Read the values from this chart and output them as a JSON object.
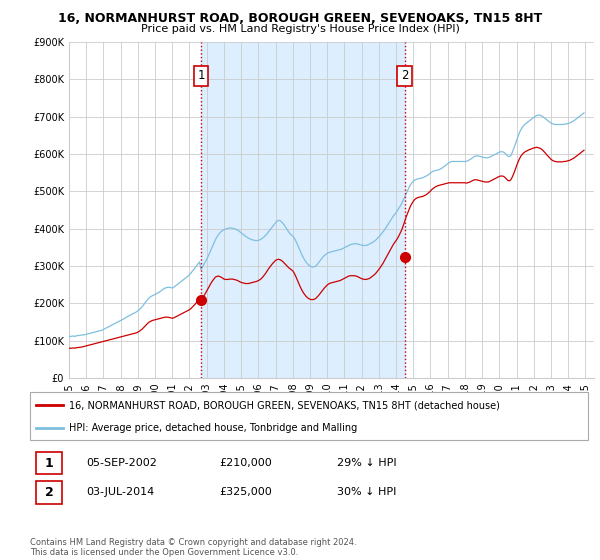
{
  "title": "16, NORMANHURST ROAD, BOROUGH GREEN, SEVENOAKS, TN15 8HT",
  "subtitle": "Price paid vs. HM Land Registry's House Price Index (HPI)",
  "ylim": [
    0,
    900000
  ],
  "yticks": [
    0,
    100000,
    200000,
    300000,
    400000,
    500000,
    600000,
    700000,
    800000,
    900000
  ],
  "xlim_start": 1995.0,
  "xlim_end": 2025.5,
  "sale1_date": 2002.67,
  "sale1_price": 210000,
  "sale1_label": "1",
  "sale2_date": 2014.5,
  "sale2_price": 325000,
  "sale2_label": "2",
  "hpi_color": "#7fbfdf",
  "sale_color": "#cc0000",
  "vline_color": "#cc0000",
  "shade_color": "#ddeeff",
  "legend_sale_label": "16, NORMANHURST ROAD, BOROUGH GREEN, SEVENOAKS, TN15 8HT (detached house)",
  "legend_hpi_label": "HPI: Average price, detached house, Tonbridge and Malling",
  "table_rows": [
    {
      "num": "1",
      "date": "05-SEP-2002",
      "price": "£210,000",
      "change": "29% ↓ HPI"
    },
    {
      "num": "2",
      "date": "03-JUL-2014",
      "price": "£325,000",
      "change": "30% ↓ HPI"
    }
  ],
  "footnote": "Contains HM Land Registry data © Crown copyright and database right 2024.\nThis data is licensed under the Open Government Licence v3.0.",
  "background_color": "#ffffff",
  "grid_color": "#cccccc",
  "hpi_data_x": [
    1995.0,
    1995.083,
    1995.167,
    1995.25,
    1995.333,
    1995.417,
    1995.5,
    1995.583,
    1995.667,
    1995.75,
    1995.833,
    1995.917,
    1996.0,
    1996.083,
    1996.167,
    1996.25,
    1996.333,
    1996.417,
    1996.5,
    1996.583,
    1996.667,
    1996.75,
    1996.833,
    1996.917,
    1997.0,
    1997.083,
    1997.167,
    1997.25,
    1997.333,
    1997.417,
    1997.5,
    1997.583,
    1997.667,
    1997.75,
    1997.833,
    1997.917,
    1998.0,
    1998.083,
    1998.167,
    1998.25,
    1998.333,
    1998.417,
    1998.5,
    1998.583,
    1998.667,
    1998.75,
    1998.833,
    1998.917,
    1999.0,
    1999.083,
    1999.167,
    1999.25,
    1999.333,
    1999.417,
    1999.5,
    1999.583,
    1999.667,
    1999.75,
    1999.833,
    1999.917,
    2000.0,
    2000.083,
    2000.167,
    2000.25,
    2000.333,
    2000.417,
    2000.5,
    2000.583,
    2000.667,
    2000.75,
    2000.833,
    2000.917,
    2001.0,
    2001.083,
    2001.167,
    2001.25,
    2001.333,
    2001.417,
    2001.5,
    2001.583,
    2001.667,
    2001.75,
    2001.833,
    2001.917,
    2002.0,
    2002.083,
    2002.167,
    2002.25,
    2002.333,
    2002.417,
    2002.5,
    2002.583,
    2002.667,
    2002.75,
    2002.833,
    2002.917,
    2003.0,
    2003.083,
    2003.167,
    2003.25,
    2003.333,
    2003.417,
    2003.5,
    2003.583,
    2003.667,
    2003.75,
    2003.833,
    2003.917,
    2004.0,
    2004.083,
    2004.167,
    2004.25,
    2004.333,
    2004.417,
    2004.5,
    2004.583,
    2004.667,
    2004.75,
    2004.833,
    2004.917,
    2005.0,
    2005.083,
    2005.167,
    2005.25,
    2005.333,
    2005.417,
    2005.5,
    2005.583,
    2005.667,
    2005.75,
    2005.833,
    2005.917,
    2006.0,
    2006.083,
    2006.167,
    2006.25,
    2006.333,
    2006.417,
    2006.5,
    2006.583,
    2006.667,
    2006.75,
    2006.833,
    2006.917,
    2007.0,
    2007.083,
    2007.167,
    2007.25,
    2007.333,
    2007.417,
    2007.5,
    2007.583,
    2007.667,
    2007.75,
    2007.833,
    2007.917,
    2008.0,
    2008.083,
    2008.167,
    2008.25,
    2008.333,
    2008.417,
    2008.5,
    2008.583,
    2008.667,
    2008.75,
    2008.833,
    2008.917,
    2009.0,
    2009.083,
    2009.167,
    2009.25,
    2009.333,
    2009.417,
    2009.5,
    2009.583,
    2009.667,
    2009.75,
    2009.833,
    2009.917,
    2010.0,
    2010.083,
    2010.167,
    2010.25,
    2010.333,
    2010.417,
    2010.5,
    2010.583,
    2010.667,
    2010.75,
    2010.833,
    2010.917,
    2011.0,
    2011.083,
    2011.167,
    2011.25,
    2011.333,
    2011.417,
    2011.5,
    2011.583,
    2011.667,
    2011.75,
    2011.833,
    2011.917,
    2012.0,
    2012.083,
    2012.167,
    2012.25,
    2012.333,
    2012.417,
    2012.5,
    2012.583,
    2012.667,
    2012.75,
    2012.833,
    2012.917,
    2013.0,
    2013.083,
    2013.167,
    2013.25,
    2013.333,
    2013.417,
    2013.5,
    2013.583,
    2013.667,
    2013.75,
    2013.833,
    2013.917,
    2014.0,
    2014.083,
    2014.167,
    2014.25,
    2014.333,
    2014.417,
    2014.5,
    2014.583,
    2014.667,
    2014.75,
    2014.833,
    2014.917,
    2015.0,
    2015.083,
    2015.167,
    2015.25,
    2015.333,
    2015.417,
    2015.5,
    2015.583,
    2015.667,
    2015.75,
    2015.833,
    2015.917,
    2016.0,
    2016.083,
    2016.167,
    2016.25,
    2016.333,
    2016.417,
    2016.5,
    2016.583,
    2016.667,
    2016.75,
    2016.833,
    2016.917,
    2017.0,
    2017.083,
    2017.167,
    2017.25,
    2017.333,
    2017.417,
    2017.5,
    2017.583,
    2017.667,
    2017.75,
    2017.833,
    2017.917,
    2018.0,
    2018.083,
    2018.167,
    2018.25,
    2018.333,
    2018.417,
    2018.5,
    2018.583,
    2018.667,
    2018.75,
    2018.833,
    2018.917,
    2019.0,
    2019.083,
    2019.167,
    2019.25,
    2019.333,
    2019.417,
    2019.5,
    2019.583,
    2019.667,
    2019.75,
    2019.833,
    2019.917,
    2020.0,
    2020.083,
    2020.167,
    2020.25,
    2020.333,
    2020.417,
    2020.5,
    2020.583,
    2020.667,
    2020.75,
    2020.833,
    2020.917,
    2021.0,
    2021.083,
    2021.167,
    2021.25,
    2021.333,
    2021.417,
    2021.5,
    2021.583,
    2021.667,
    2021.75,
    2021.833,
    2021.917,
    2022.0,
    2022.083,
    2022.167,
    2022.25,
    2022.333,
    2022.417,
    2022.5,
    2022.583,
    2022.667,
    2022.75,
    2022.833,
    2022.917,
    2023.0,
    2023.083,
    2023.167,
    2023.25,
    2023.333,
    2023.417,
    2023.5,
    2023.583,
    2023.667,
    2023.75,
    2023.833,
    2023.917,
    2024.0,
    2024.083,
    2024.167,
    2024.25,
    2024.333,
    2024.417,
    2024.5,
    2024.583,
    2024.667,
    2024.75,
    2024.833,
    2024.917
  ],
  "hpi_data_y": [
    112000,
    111000,
    112000,
    112500,
    111000,
    113000,
    113500,
    114000,
    114500,
    115000,
    115500,
    116000,
    117000,
    118000,
    119000,
    120000,
    121000,
    122000,
    123000,
    124000,
    125000,
    126000,
    127000,
    128000,
    130000,
    132000,
    134000,
    136000,
    138000,
    140000,
    142000,
    144000,
    146000,
    148000,
    150000,
    152000,
    154000,
    156000,
    158000,
    160000,
    163000,
    165000,
    167000,
    169000,
    171000,
    173000,
    175000,
    177000,
    180000,
    183000,
    187000,
    191000,
    196000,
    201000,
    206000,
    211000,
    215000,
    218000,
    220000,
    222000,
    224000,
    226000,
    228000,
    230000,
    233000,
    236000,
    239000,
    241000,
    242000,
    243000,
    243000,
    242000,
    241000,
    243000,
    246000,
    249000,
    252000,
    255000,
    258000,
    261000,
    264000,
    267000,
    270000,
    273000,
    277000,
    281000,
    286000,
    291000,
    296000,
    301000,
    306000,
    311000,
    290000,
    297000,
    304000,
    311000,
    318000,
    326000,
    335000,
    344000,
    353000,
    362000,
    370000,
    377000,
    383000,
    388000,
    392000,
    395000,
    397000,
    399000,
    400000,
    401000,
    402000,
    402000,
    401000,
    400000,
    399000,
    397000,
    395000,
    392000,
    389000,
    386000,
    383000,
    380000,
    377000,
    375000,
    373000,
    371000,
    370000,
    369000,
    368000,
    368000,
    369000,
    370000,
    372000,
    375000,
    378000,
    382000,
    386000,
    391000,
    396000,
    401000,
    406000,
    411000,
    416000,
    420000,
    422000,
    422000,
    419000,
    415000,
    410000,
    404000,
    398000,
    392000,
    387000,
    383000,
    380000,
    375000,
    368000,
    360000,
    351000,
    342000,
    333000,
    325000,
    318000,
    312000,
    307000,
    303000,
    300000,
    298000,
    297000,
    298000,
    300000,
    304000,
    309000,
    314000,
    319000,
    324000,
    328000,
    331000,
    334000,
    336000,
    337000,
    338000,
    339000,
    340000,
    341000,
    342000,
    343000,
    344000,
    345000,
    347000,
    349000,
    351000,
    353000,
    355000,
    357000,
    358000,
    359000,
    360000,
    360000,
    359000,
    358000,
    357000,
    356000,
    355000,
    355000,
    355000,
    356000,
    358000,
    360000,
    362000,
    364000,
    367000,
    370000,
    374000,
    378000,
    382000,
    387000,
    392000,
    397000,
    403000,
    409000,
    415000,
    421000,
    427000,
    433000,
    438000,
    443000,
    449000,
    455000,
    461000,
    468000,
    476000,
    484000,
    493000,
    502000,
    510000,
    517000,
    523000,
    527000,
    530000,
    532000,
    533000,
    534000,
    535000,
    536000,
    537000,
    539000,
    541000,
    543000,
    546000,
    549000,
    552000,
    554000,
    555000,
    556000,
    557000,
    558000,
    560000,
    562000,
    565000,
    568000,
    571000,
    574000,
    577000,
    579000,
    580000,
    580000,
    580000,
    580000,
    580000,
    580000,
    580000,
    580000,
    580000,
    580000,
    580000,
    582000,
    584000,
    586000,
    589000,
    592000,
    594000,
    595000,
    595000,
    594000,
    593000,
    592000,
    591000,
    590000,
    590000,
    590000,
    591000,
    593000,
    595000,
    597000,
    599000,
    601000,
    603000,
    605000,
    606000,
    606000,
    605000,
    602000,
    598000,
    594000,
    593000,
    596000,
    604000,
    614000,
    625000,
    636000,
    647000,
    657000,
    665000,
    671000,
    676000,
    680000,
    683000,
    686000,
    689000,
    692000,
    695000,
    698000,
    701000,
    703000,
    704000,
    704000,
    703000,
    701000,
    698000,
    695000,
    692000,
    689000,
    686000,
    683000,
    681000,
    680000,
    679000,
    679000,
    679000,
    679000,
    679000,
    679000,
    680000,
    680000,
    681000,
    682000,
    683000,
    685000,
    687000,
    689000,
    692000,
    695000,
    698000,
    701000,
    704000,
    707000,
    710000
  ],
  "sale_data_x": [
    1995.0,
    1995.083,
    1995.167,
    1995.25,
    1995.333,
    1995.417,
    1995.5,
    1995.583,
    1995.667,
    1995.75,
    1995.833,
    1995.917,
    1996.0,
    1996.083,
    1996.167,
    1996.25,
    1996.333,
    1996.417,
    1996.5,
    1996.583,
    1996.667,
    1996.75,
    1996.833,
    1996.917,
    1997.0,
    1997.083,
    1997.167,
    1997.25,
    1997.333,
    1997.417,
    1997.5,
    1997.583,
    1997.667,
    1997.75,
    1997.833,
    1997.917,
    1998.0,
    1998.083,
    1998.167,
    1998.25,
    1998.333,
    1998.417,
    1998.5,
    1998.583,
    1998.667,
    1998.75,
    1998.833,
    1998.917,
    1999.0,
    1999.083,
    1999.167,
    1999.25,
    1999.333,
    1999.417,
    1999.5,
    1999.583,
    1999.667,
    1999.75,
    1999.833,
    1999.917,
    2000.0,
    2000.083,
    2000.167,
    2000.25,
    2000.333,
    2000.417,
    2000.5,
    2000.583,
    2000.667,
    2000.75,
    2000.833,
    2000.917,
    2001.0,
    2001.083,
    2001.167,
    2001.25,
    2001.333,
    2001.417,
    2001.5,
    2001.583,
    2001.667,
    2001.75,
    2001.833,
    2001.917,
    2002.0,
    2002.083,
    2002.167,
    2002.25,
    2002.333,
    2002.417,
    2002.5,
    2002.583,
    2002.667,
    2002.75,
    2002.833,
    2002.917,
    2003.0,
    2003.083,
    2003.167,
    2003.25,
    2003.333,
    2003.417,
    2003.5,
    2003.583,
    2003.667,
    2003.75,
    2003.833,
    2003.917,
    2004.0,
    2004.083,
    2004.167,
    2004.25,
    2004.333,
    2004.417,
    2004.5,
    2004.583,
    2004.667,
    2004.75,
    2004.833,
    2004.917,
    2005.0,
    2005.083,
    2005.167,
    2005.25,
    2005.333,
    2005.417,
    2005.5,
    2005.583,
    2005.667,
    2005.75,
    2005.833,
    2005.917,
    2006.0,
    2006.083,
    2006.167,
    2006.25,
    2006.333,
    2006.417,
    2006.5,
    2006.583,
    2006.667,
    2006.75,
    2006.833,
    2006.917,
    2007.0,
    2007.083,
    2007.167,
    2007.25,
    2007.333,
    2007.417,
    2007.5,
    2007.583,
    2007.667,
    2007.75,
    2007.833,
    2007.917,
    2008.0,
    2008.083,
    2008.167,
    2008.25,
    2008.333,
    2008.417,
    2008.5,
    2008.583,
    2008.667,
    2008.75,
    2008.833,
    2008.917,
    2009.0,
    2009.083,
    2009.167,
    2009.25,
    2009.333,
    2009.417,
    2009.5,
    2009.583,
    2009.667,
    2009.75,
    2009.833,
    2009.917,
    2010.0,
    2010.083,
    2010.167,
    2010.25,
    2010.333,
    2010.417,
    2010.5,
    2010.583,
    2010.667,
    2010.75,
    2010.833,
    2010.917,
    2011.0,
    2011.083,
    2011.167,
    2011.25,
    2011.333,
    2011.417,
    2011.5,
    2011.583,
    2011.667,
    2011.75,
    2011.833,
    2011.917,
    2012.0,
    2012.083,
    2012.167,
    2012.25,
    2012.333,
    2012.417,
    2012.5,
    2012.583,
    2012.667,
    2012.75,
    2012.833,
    2012.917,
    2013.0,
    2013.083,
    2013.167,
    2013.25,
    2013.333,
    2013.417,
    2013.5,
    2013.583,
    2013.667,
    2013.75,
    2013.833,
    2013.917,
    2014.0,
    2014.083,
    2014.167,
    2014.25,
    2014.333,
    2014.417,
    2014.5,
    2014.583,
    2014.667,
    2014.75,
    2014.833,
    2014.917,
    2015.0,
    2015.083,
    2015.167,
    2015.25,
    2015.333,
    2015.417,
    2015.5,
    2015.583,
    2015.667,
    2015.75,
    2015.833,
    2015.917,
    2016.0,
    2016.083,
    2016.167,
    2016.25,
    2016.333,
    2016.417,
    2016.5,
    2016.583,
    2016.667,
    2016.75,
    2016.833,
    2016.917,
    2017.0,
    2017.083,
    2017.167,
    2017.25,
    2017.333,
    2017.417,
    2017.5,
    2017.583,
    2017.667,
    2017.75,
    2017.833,
    2017.917,
    2018.0,
    2018.083,
    2018.167,
    2018.25,
    2018.333,
    2018.417,
    2018.5,
    2018.583,
    2018.667,
    2018.75,
    2018.833,
    2018.917,
    2019.0,
    2019.083,
    2019.167,
    2019.25,
    2019.333,
    2019.417,
    2019.5,
    2019.583,
    2019.667,
    2019.75,
    2019.833,
    2019.917,
    2020.0,
    2020.083,
    2020.167,
    2020.25,
    2020.333,
    2020.417,
    2020.5,
    2020.583,
    2020.667,
    2020.75,
    2020.833,
    2020.917,
    2021.0,
    2021.083,
    2021.167,
    2021.25,
    2021.333,
    2021.417,
    2021.5,
    2021.583,
    2021.667,
    2021.75,
    2021.833,
    2021.917,
    2022.0,
    2022.083,
    2022.167,
    2022.25,
    2022.333,
    2022.417,
    2022.5,
    2022.583,
    2022.667,
    2022.75,
    2022.833,
    2022.917,
    2023.0,
    2023.083,
    2023.167,
    2023.25,
    2023.333,
    2023.417,
    2023.5,
    2023.583,
    2023.667,
    2023.75,
    2023.833,
    2023.917,
    2024.0,
    2024.083,
    2024.167,
    2024.25,
    2024.333,
    2024.417,
    2024.5,
    2024.583,
    2024.667,
    2024.75,
    2024.833,
    2024.917
  ],
  "sale_data_y": [
    80000,
    79500,
    80000,
    80500,
    80000,
    81000,
    81500,
    82000,
    82500,
    83000,
    84000,
    85000,
    86000,
    87000,
    88000,
    89000,
    90000,
    91000,
    92000,
    93000,
    94000,
    95000,
    96000,
    97000,
    98000,
    99000,
    100000,
    101000,
    102000,
    103000,
    104000,
    105000,
    106000,
    107000,
    108000,
    109000,
    110000,
    111000,
    112000,
    113000,
    114000,
    115000,
    116000,
    117000,
    118000,
    119000,
    120000,
    121000,
    123000,
    125000,
    128000,
    131000,
    135000,
    139000,
    143000,
    147000,
    150000,
    152000,
    154000,
    155000,
    156000,
    157000,
    158000,
    159000,
    160000,
    161000,
    162000,
    163000,
    163000,
    163000,
    162000,
    161000,
    160000,
    161000,
    163000,
    165000,
    167000,
    169000,
    171000,
    173000,
    175000,
    177000,
    179000,
    181000,
    183000,
    186000,
    190000,
    194000,
    198000,
    203000,
    208000,
    213000,
    210000,
    215000,
    220000,
    226000,
    233000,
    240000,
    247000,
    254000,
    260000,
    265000,
    270000,
    272000,
    273000,
    272000,
    270000,
    268000,
    265000,
    264000,
    264000,
    264000,
    265000,
    265000,
    265000,
    264000,
    263000,
    262000,
    260000,
    258000,
    256000,
    255000,
    254000,
    253000,
    253000,
    253000,
    254000,
    255000,
    256000,
    257000,
    258000,
    259000,
    261000,
    263000,
    266000,
    270000,
    275000,
    280000,
    286000,
    292000,
    297000,
    302000,
    307000,
    311000,
    315000,
    317000,
    318000,
    317000,
    315000,
    312000,
    308000,
    304000,
    300000,
    296000,
    293000,
    290000,
    287000,
    281000,
    273000,
    264000,
    255000,
    246000,
    238000,
    231000,
    225000,
    220000,
    216000,
    213000,
    211000,
    210000,
    210000,
    211000,
    213000,
    217000,
    221000,
    226000,
    231000,
    236000,
    241000,
    245000,
    249000,
    252000,
    254000,
    255000,
    256000,
    257000,
    258000,
    259000,
    260000,
    261000,
    263000,
    265000,
    267000,
    269000,
    271000,
    273000,
    274000,
    274000,
    274000,
    274000,
    273000,
    272000,
    270000,
    268000,
    266000,
    265000,
    264000,
    264000,
    265000,
    266000,
    268000,
    271000,
    274000,
    277000,
    281000,
    286000,
    291000,
    296000,
    302000,
    308000,
    315000,
    322000,
    329000,
    336000,
    343000,
    350000,
    357000,
    363000,
    368000,
    374000,
    381000,
    389000,
    397000,
    408000,
    419000,
    431000,
    441000,
    451000,
    460000,
    467000,
    473000,
    478000,
    481000,
    483000,
    484000,
    485000,
    486000,
    487000,
    489000,
    491000,
    494000,
    497000,
    501000,
    505000,
    508000,
    511000,
    513000,
    515000,
    516000,
    517000,
    518000,
    519000,
    520000,
    521000,
    522000,
    523000,
    523000,
    523000,
    523000,
    523000,
    523000,
    523000,
    523000,
    523000,
    523000,
    523000,
    523000,
    522000,
    523000,
    524000,
    526000,
    528000,
    530000,
    531000,
    531000,
    530000,
    529000,
    528000,
    527000,
    526000,
    525000,
    525000,
    525000,
    526000,
    528000,
    530000,
    532000,
    534000,
    536000,
    538000,
    540000,
    541000,
    541000,
    540000,
    537000,
    533000,
    529000,
    528000,
    531000,
    538000,
    547000,
    558000,
    568000,
    578000,
    587000,
    594000,
    599000,
    603000,
    606000,
    608000,
    610000,
    612000,
    613000,
    615000,
    616000,
    617000,
    618000,
    617000,
    616000,
    614000,
    611000,
    607000,
    603000,
    598000,
    594000,
    590000,
    586000,
    583000,
    581000,
    580000,
    579000,
    579000,
    579000,
    579000,
    579000,
    580000,
    580000,
    581000,
    582000,
    583000,
    585000,
    587000,
    589000,
    592000,
    595000,
    598000,
    601000,
    604000,
    607000,
    610000
  ]
}
